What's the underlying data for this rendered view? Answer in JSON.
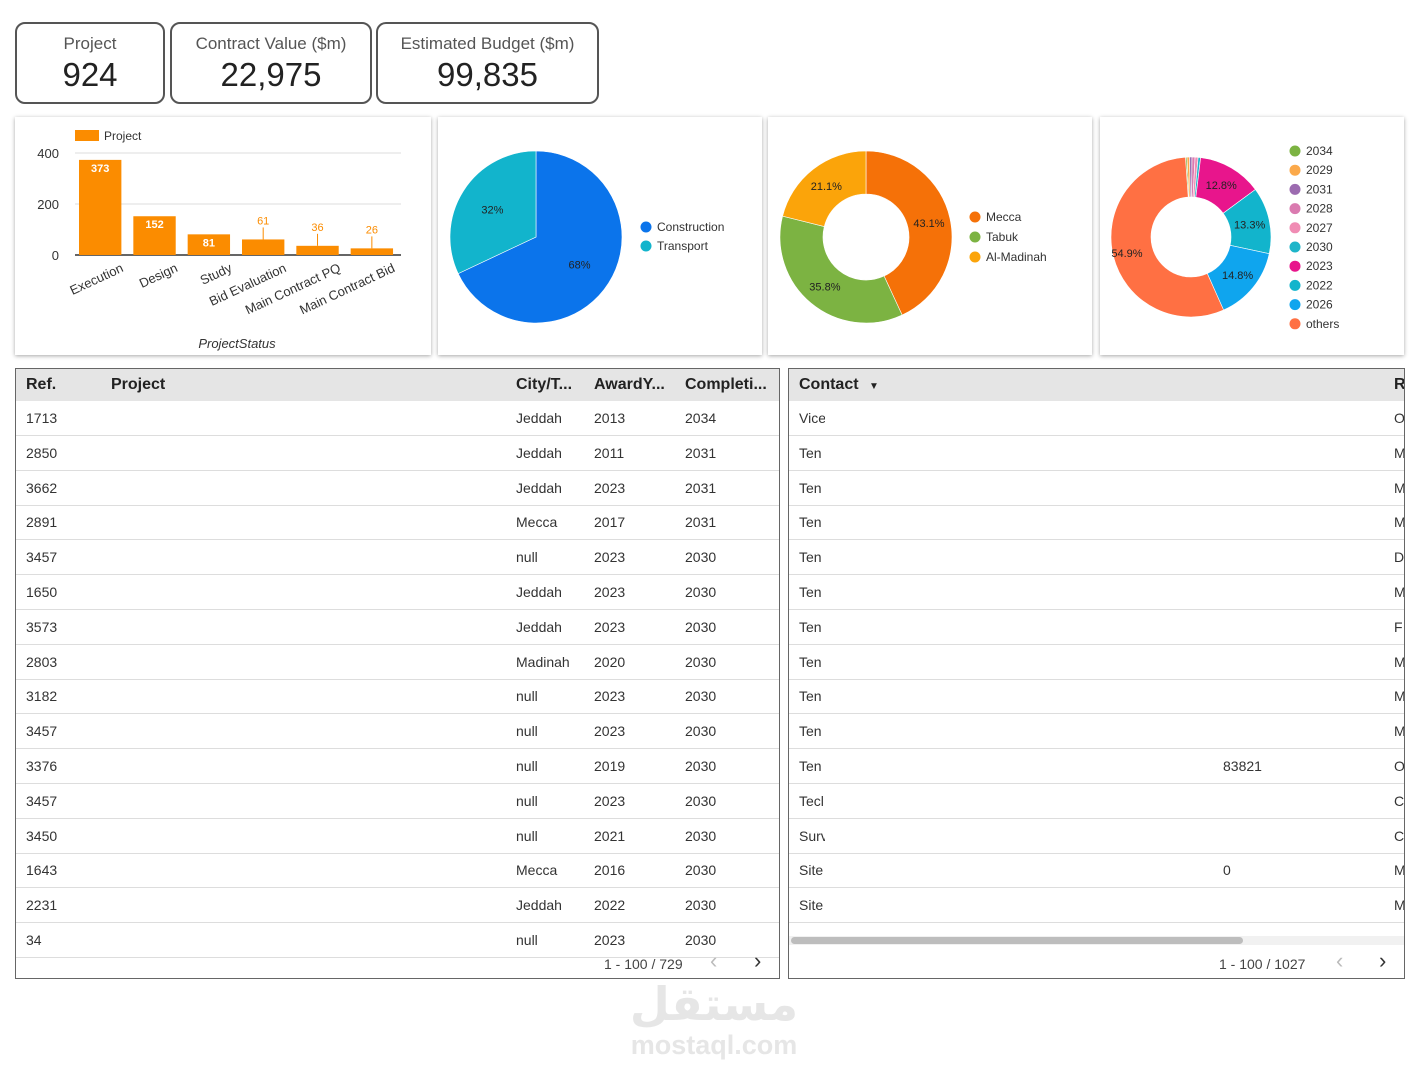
{
  "kpis": [
    {
      "label": "Project",
      "value": "924"
    },
    {
      "label": "Contract Value ($m)",
      "value": "22,975"
    },
    {
      "label": "Estimated Budget ($m)",
      "value": "99,835"
    }
  ],
  "chart_data": [
    {
      "type": "bar",
      "categories": [
        "Execution",
        "Design",
        "Study",
        "Bid Evaluation",
        "Main Contract PQ",
        "Main Contract Bid"
      ],
      "values": [
        373,
        152,
        81,
        61,
        36,
        26
      ],
      "series_name": "Project",
      "xlabel": "ProjectStatus",
      "ylabel": "",
      "yticks": [
        "400",
        "200",
        "0"
      ],
      "ylim": [
        0,
        400
      ],
      "color": "#FB8C00",
      "legend": "top-left",
      "grid": true
    },
    {
      "type": "pie",
      "labels": [
        "Construction",
        "Transport"
      ],
      "values": [
        68,
        32
      ],
      "value_labels": [
        "68%",
        "32%"
      ],
      "colors": [
        "#0B74EB",
        "#12B4CC"
      ],
      "legend": "right"
    },
    {
      "type": "pie",
      "donut": true,
      "labels": [
        "Mecca",
        "Tabuk",
        "Al-Madinah"
      ],
      "values": [
        43.1,
        35.8,
        21.1
      ],
      "value_labels": [
        "43.1%",
        "35.8%",
        "21.1%"
      ],
      "colors": [
        "#F57108",
        "#7CB342",
        "#FBA40A"
      ],
      "legend": "right"
    },
    {
      "type": "pie",
      "donut": true,
      "labels": [
        "2034",
        "2029",
        "2031",
        "2028",
        "2027",
        "2030",
        "2023",
        "2022",
        "2026",
        "others"
      ],
      "values": [
        0.3,
        0.5,
        0.5,
        0.6,
        0.6,
        0.5,
        12.8,
        13.3,
        14.8,
        54.9
      ],
      "value_labels": [
        "",
        "",
        "",
        "",
        "",
        "",
        "12.8%",
        "13.3%",
        "14.8%",
        "54.9%"
      ],
      "colors": [
        "#7CB342",
        "#FBA94B",
        "#9C6BB0",
        "#DA7BB0",
        "#F08CB4",
        "#1EB5C9",
        "#E8158C",
        "#12B4CC",
        "#0FA5EE",
        "#FF7043"
      ],
      "legend": "right"
    }
  ],
  "table1": {
    "headers": [
      "Ref.",
      "Project",
      "City/T...",
      "AwardY...",
      "Completi..."
    ],
    "rows": [
      [
        "1713",
        "",
        "Jeddah",
        "2013",
        "2034"
      ],
      [
        "2850",
        "",
        "Jeddah",
        "2011",
        "2031"
      ],
      [
        "3662",
        "",
        "Jeddah",
        "2023",
        "2031"
      ],
      [
        "2891",
        "",
        "Mecca",
        "2017",
        "2031"
      ],
      [
        "3457",
        "",
        "null",
        "2023",
        "2030"
      ],
      [
        "1650",
        "",
        "Jeddah",
        "2023",
        "2030"
      ],
      [
        "3573",
        "",
        "Jeddah",
        "2023",
        "2030"
      ],
      [
        "2803",
        "",
        "Madinah",
        "2020",
        "2030"
      ],
      [
        "3182",
        "",
        "null",
        "2023",
        "2030"
      ],
      [
        "3457",
        "",
        "null",
        "2023",
        "2030"
      ],
      [
        "3376",
        "",
        "null",
        "2019",
        "2030"
      ],
      [
        "3457",
        "",
        "null",
        "2023",
        "2030"
      ],
      [
        "3450",
        "",
        "null",
        "2021",
        "2030"
      ],
      [
        "1643",
        "",
        "Mecca",
        "2016",
        "2030"
      ],
      [
        "2231",
        "",
        "Jeddah",
        "2022",
        "2030"
      ],
      [
        "34",
        "",
        "null",
        "2023",
        "2030"
      ]
    ],
    "pager": "1 - 100 / 729"
  },
  "table2": {
    "headers": [
      "Contact",
      "R"
    ],
    "sort_icon": "caret-down-icon",
    "rows": [
      [
        "Vice",
        "",
        "O"
      ],
      [
        "Ten",
        "",
        "M"
      ],
      [
        "Ten",
        "",
        "M"
      ],
      [
        "Ten",
        "",
        "M"
      ],
      [
        "Ten",
        "",
        "D"
      ],
      [
        "Ten",
        "",
        "M"
      ],
      [
        "Ten",
        "",
        "F"
      ],
      [
        "Ten",
        "",
        "M"
      ],
      [
        "Ten",
        "",
        "M"
      ],
      [
        "Ten",
        "",
        "M"
      ],
      [
        "Ten",
        "83821",
        "O"
      ],
      [
        "Tecl",
        "",
        "C"
      ],
      [
        "Surv",
        "",
        "C"
      ],
      [
        "Site",
        "0",
        "M"
      ],
      [
        "Site",
        "",
        "M"
      ]
    ],
    "pager": "1 - 100 / 1027"
  },
  "pager_icons": {
    "prev": "chevron-left-icon",
    "next": "chevron-right-icon"
  },
  "watermark": {
    "arabic": "مستقل",
    "latin": "mostaql.com"
  }
}
